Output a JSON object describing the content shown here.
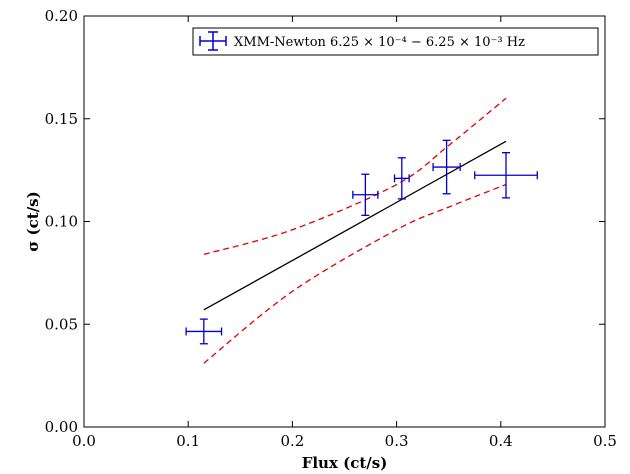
{
  "chart_data": {
    "type": "scatter",
    "xlabel": "Flux (ct/s)",
    "ylabel": "σ (ct/s)",
    "xlim": [
      0.0,
      0.5
    ],
    "ylim": [
      0.0,
      0.2
    ],
    "x_ticks": [
      "0.0",
      "0.1",
      "0.2",
      "0.3",
      "0.4",
      "0.5"
    ],
    "y_ticks": [
      "0.00",
      "0.05",
      "0.10",
      "0.15",
      "0.20"
    ],
    "legend_position": "top-right",
    "series": [
      {
        "name": "XMM-Newton 6.25 × 10⁻⁴ − 6.25 × 10⁻³ Hz",
        "color": "#0000cc",
        "points": [
          {
            "x": 0.115,
            "y": 0.0465,
            "xerr": 0.017,
            "yerr": 0.006
          },
          {
            "x": 0.27,
            "y": 0.113,
            "xerr": 0.012,
            "yerr": 0.01
          },
          {
            "x": 0.305,
            "y": 0.121,
            "xerr": 0.007,
            "yerr": 0.01
          },
          {
            "x": 0.348,
            "y": 0.1265,
            "xerr": 0.013,
            "yerr": 0.013
          },
          {
            "x": 0.405,
            "y": 0.1225,
            "xerr": 0.03,
            "yerr": 0.011
          }
        ]
      }
    ],
    "fit_line": {
      "color": "#000000",
      "x": [
        0.115,
        0.405
      ],
      "y": [
        0.057,
        0.139
      ]
    },
    "confidence_band": {
      "color": "#dd0000",
      "upper": {
        "x": [
          0.115,
          0.2,
          0.3,
          0.35,
          0.405
        ],
        "y": [
          0.084,
          0.096,
          0.118,
          0.137,
          0.16
        ]
      },
      "lower": {
        "x": [
          0.115,
          0.2,
          0.3,
          0.35,
          0.405
        ],
        "y": [
          0.031,
          0.066,
          0.096,
          0.107,
          0.118
        ]
      }
    }
  }
}
